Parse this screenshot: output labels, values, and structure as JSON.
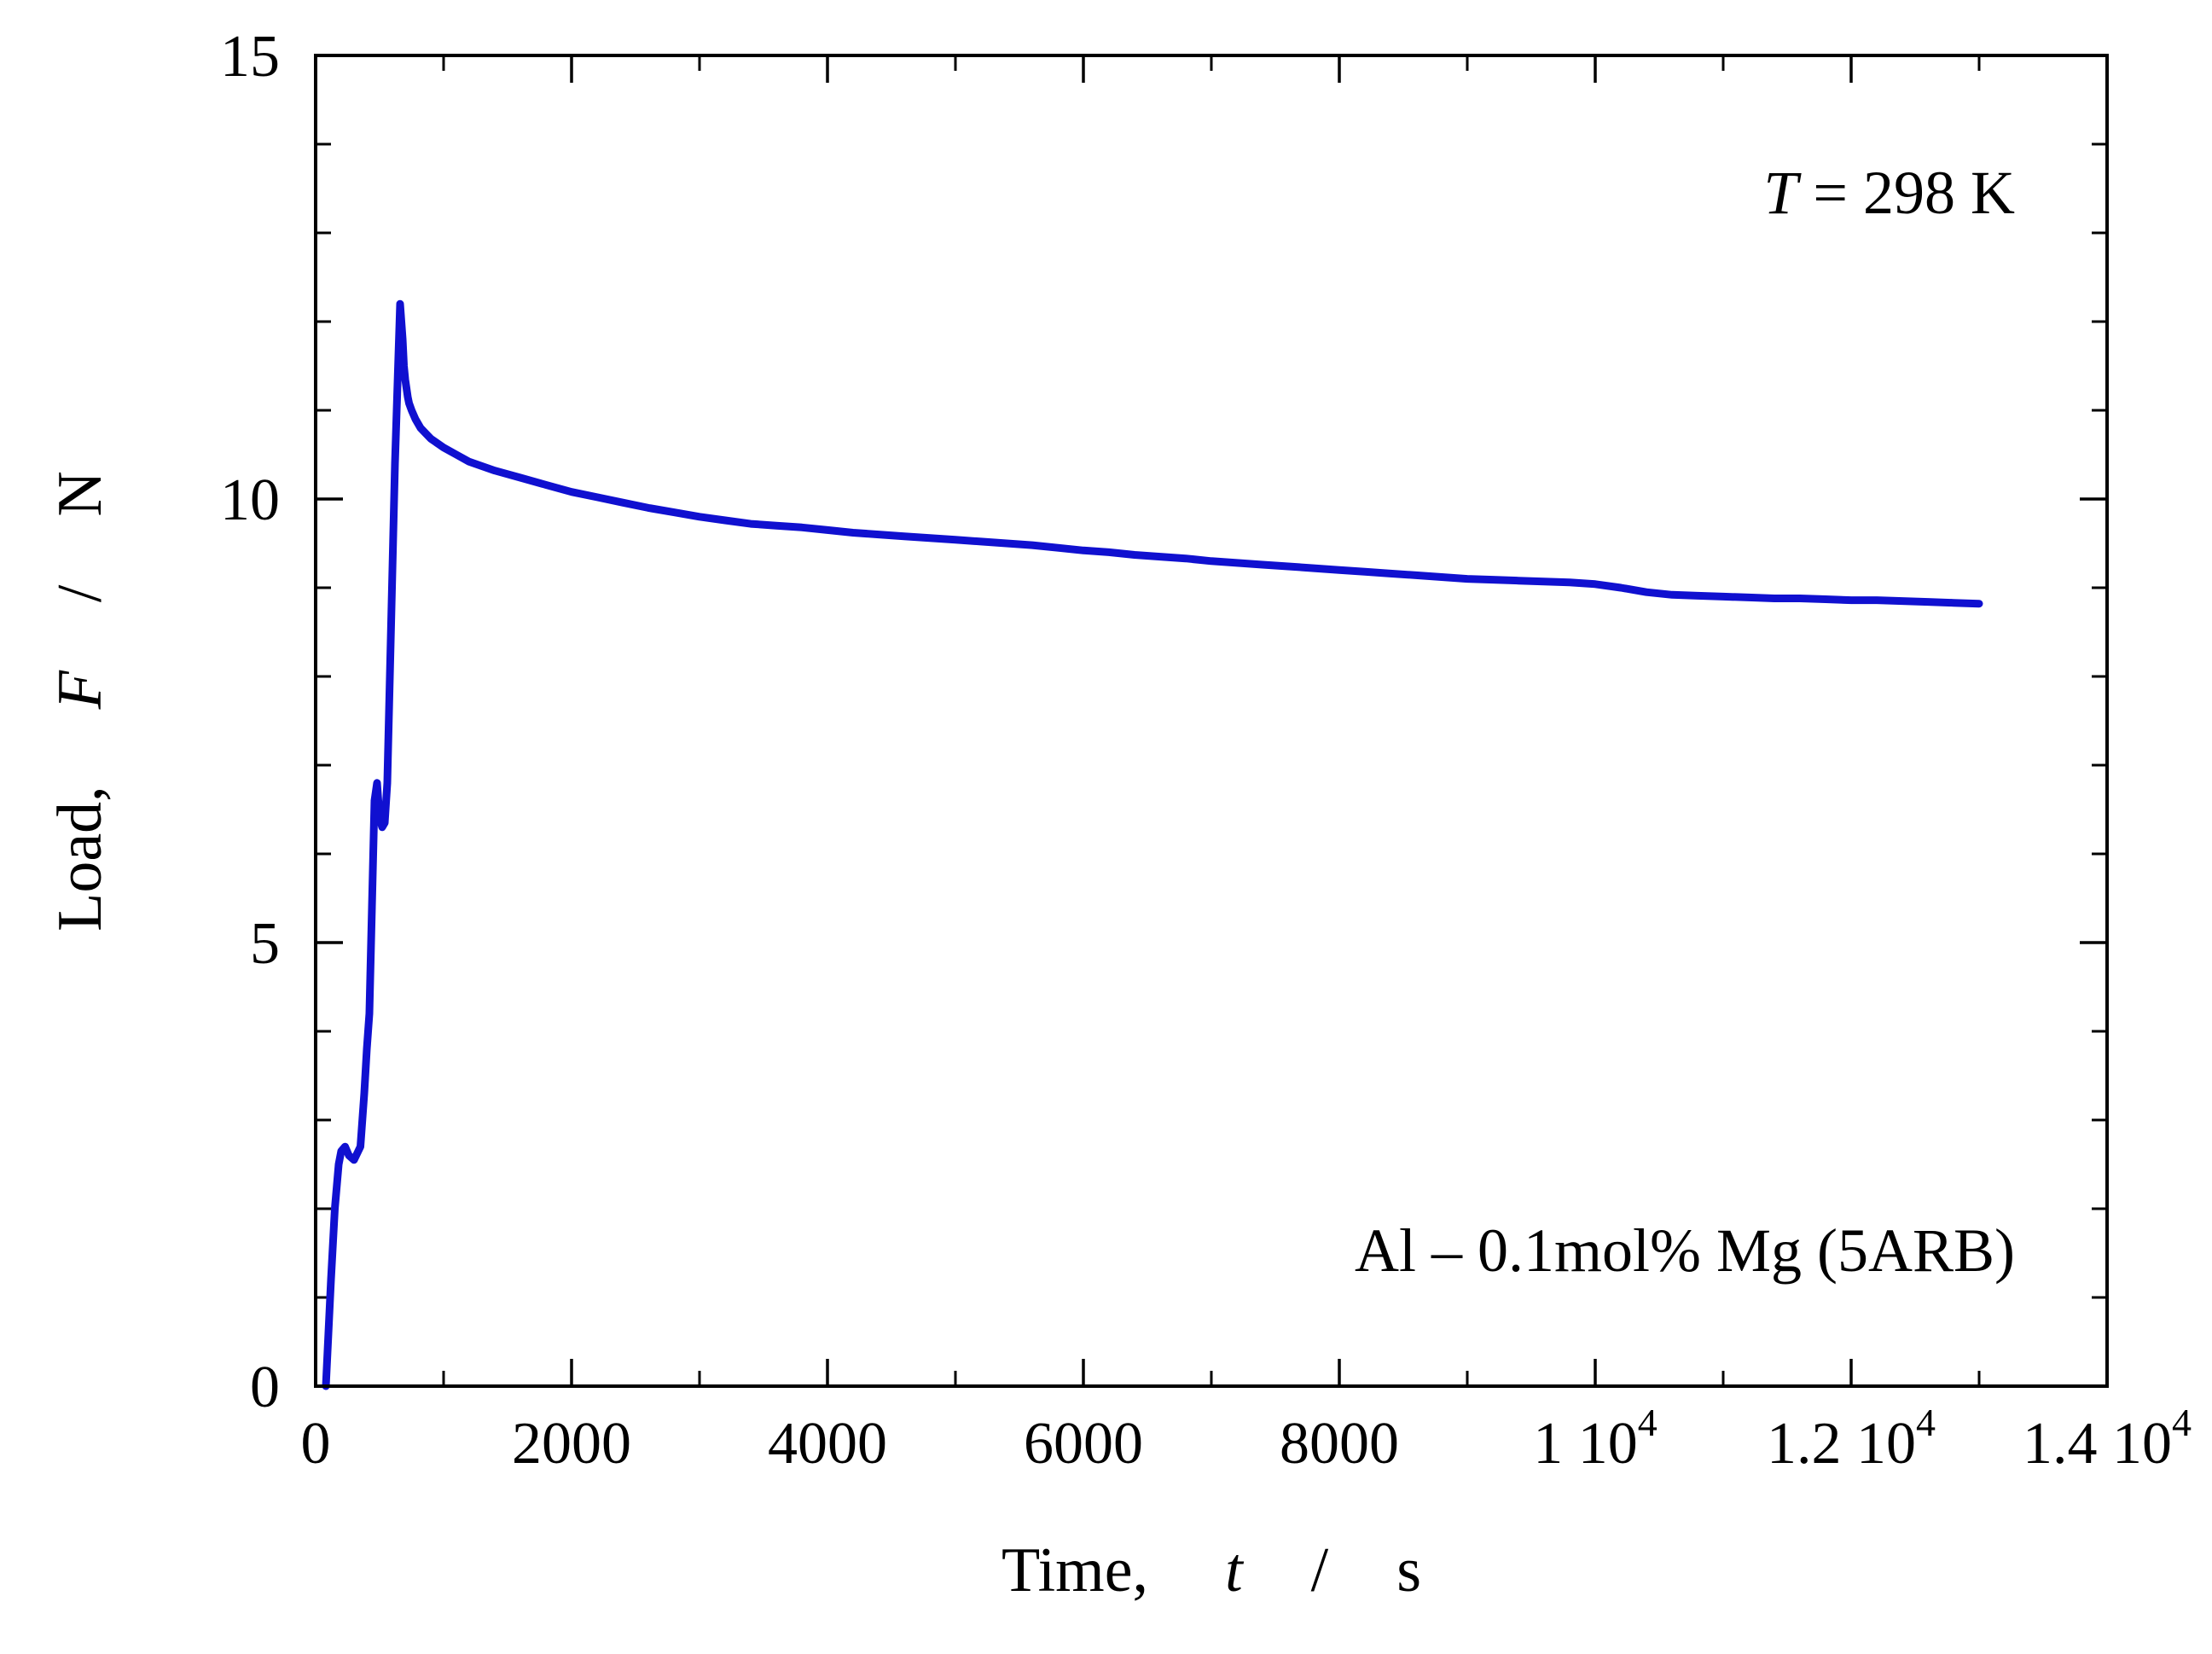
{
  "chart_data": {
    "type": "line",
    "xlim": [
      0,
      14000
    ],
    "ylim": [
      0,
      15
    ],
    "grid": false,
    "x_axis": {
      "label_prefix": "Time,",
      "label_symbol": "t",
      "label_separator": "/",
      "label_unit": "s",
      "ticks": [
        {
          "value": 0,
          "mantissa": "0",
          "exponent": ""
        },
        {
          "value": 2000,
          "mantissa": "2000",
          "exponent": ""
        },
        {
          "value": 4000,
          "mantissa": "4000",
          "exponent": ""
        },
        {
          "value": 6000,
          "mantissa": "6000",
          "exponent": ""
        },
        {
          "value": 8000,
          "mantissa": "8000",
          "exponent": ""
        },
        {
          "value": 10000,
          "mantissa": "1 10",
          "exponent": "4"
        },
        {
          "value": 12000,
          "mantissa": "1.2 10",
          "exponent": "4"
        },
        {
          "value": 14000,
          "mantissa": "1.4 10",
          "exponent": "4"
        }
      ],
      "minor_step": 1000
    },
    "y_axis": {
      "label_prefix": "Load,",
      "label_symbol": "F",
      "label_separator": "/",
      "label_unit": "N",
      "ticks": [
        {
          "value": 0,
          "label": "0"
        },
        {
          "value": 5,
          "label": "5"
        },
        {
          "value": 10,
          "label": "10"
        },
        {
          "value": 15,
          "label": "15"
        }
      ],
      "minor_step": 1
    },
    "annotations": {
      "temperature": {
        "symbol": "T",
        "text": " = 298 K"
      },
      "material": "Al – 0.1mol% Mg (5ARB)"
    },
    "series": [
      {
        "color": "#1010d0",
        "x": [
          80,
          100,
          120,
          150,
          180,
          200,
          230,
          260,
          300,
          350,
          380,
          400,
          420,
          440,
          460,
          480,
          500,
          520,
          540,
          560,
          580,
          600,
          620,
          640,
          660,
          680,
          690,
          700,
          710,
          720,
          730,
          750,
          780,
          820,
          900,
          1000,
          1100,
          1200,
          1400,
          1600,
          1800,
          2000,
          2200,
          2400,
          2600,
          2800,
          3000,
          3200,
          3400,
          3600,
          3800,
          4000,
          4200,
          4400,
          4600,
          4800,
          5000,
          5200,
          5400,
          5600,
          5800,
          6000,
          6200,
          6400,
          6600,
          6800,
          7000,
          7200,
          7400,
          7600,
          7800,
          8000,
          8200,
          8400,
          8600,
          8800,
          9000,
          9200,
          9400,
          9600,
          9800,
          10000,
          10200,
          10400,
          10600,
          10800,
          11000,
          11200,
          11400,
          11600,
          11800,
          12000,
          12200,
          12400,
          12600,
          12800,
          13000
        ],
        "y": [
          0.0,
          0.6,
          1.2,
          2.0,
          2.5,
          2.65,
          2.7,
          2.6,
          2.55,
          2.7,
          3.3,
          3.8,
          4.2,
          5.4,
          6.6,
          6.8,
          6.4,
          6.3,
          6.35,
          6.8,
          8.0,
          9.2,
          10.4,
          11.3,
          12.2,
          11.8,
          11.5,
          11.35,
          11.25,
          11.15,
          11.08,
          11.0,
          10.9,
          10.8,
          10.68,
          10.58,
          10.5,
          10.42,
          10.32,
          10.24,
          10.16,
          10.08,
          10.02,
          9.96,
          9.9,
          9.85,
          9.8,
          9.76,
          9.72,
          9.7,
          9.68,
          9.65,
          9.62,
          9.6,
          9.58,
          9.56,
          9.54,
          9.52,
          9.5,
          9.48,
          9.45,
          9.42,
          9.4,
          9.37,
          9.35,
          9.33,
          9.3,
          9.28,
          9.26,
          9.24,
          9.22,
          9.2,
          9.18,
          9.16,
          9.14,
          9.12,
          9.1,
          9.09,
          9.08,
          9.07,
          9.06,
          9.04,
          9.0,
          8.95,
          8.92,
          8.91,
          8.9,
          8.89,
          8.88,
          8.88,
          8.87,
          8.86,
          8.86,
          8.85,
          8.84,
          8.83,
          8.82
        ]
      }
    ]
  }
}
